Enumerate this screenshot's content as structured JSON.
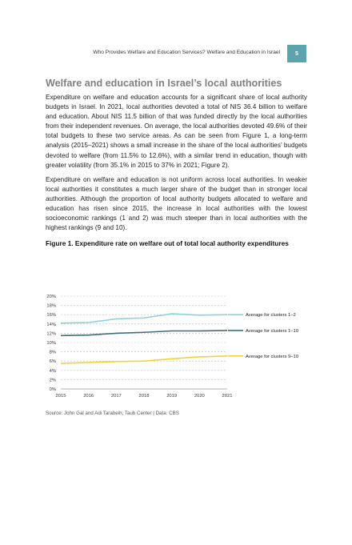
{
  "header": {
    "running_title": "Who Provides Welfare and Education Services? Welfare and Education in Israel",
    "page_number": "5"
  },
  "section_title": "Welfare and education in Israel’s local authorities",
  "paragraphs": [
    "Expenditure on welfare and education accounts for a significant share of local authority budgets in Israel. In 2021, local authorities devoted a total of NIS 36.4 billion to welfare and education. About NIS 11.5 billion of that was funded directly by the local authorities from their independent revenues. On average, the local authorities devoted 49.6% of their total budgets to these two service areas. As can be seen from Figure 1, a long-term analysis (2015–2021) shows a small increase in the share of the local authorities’ budgets devoted to welfare (from 11.5% to 12.6%), with a similar trend in education, though with greater volatility (from 35.1% in 2015 to 37% in 2021; Figure 2).",
    "Expenditure on welfare and education is not uniform across local authorities. In weaker local authorities it constitutes a much larger share of the budget than in stronger local authorities. Although the proportion of local authority budgets allocated to welfare and education has risen since 2015, the increase in local authorities with the lowest socioeconomic rankings (1 and 2) was much steeper than in local authorities with the highest rankings (9 and 10)."
  ],
  "figure": {
    "title": "Figure 1. Expenditure rate on welfare out of total local authority expenditures",
    "source": "Source: John Gal and Adi Tarabeih, Taub Center | Data: CBS"
  },
  "chart_data": {
    "type": "line",
    "x": [
      "2015",
      "2016",
      "2017",
      "2018",
      "2019",
      "2020",
      "2021"
    ],
    "yticks": [
      "0%",
      "2%",
      "4%",
      "6%",
      "8%",
      "10%",
      "12%",
      "14%",
      "16%",
      "18%",
      "20%"
    ],
    "ylim": [
      0,
      20
    ],
    "grid": true,
    "legend": "right-end labels",
    "series": [
      {
        "name": "Average for clusters 1–2",
        "color": "#8fd1dc",
        "values": [
          14.2,
          14.3,
          15.1,
          15.3,
          16.2,
          15.9,
          16.0
        ]
      },
      {
        "name": "Average for clusters 1–10",
        "color": "#3e6e7a",
        "values": [
          11.5,
          11.6,
          12.0,
          12.2,
          12.5,
          12.5,
          12.6
        ]
      },
      {
        "name": "Average for clusters 9–10",
        "color": "#f2d43a",
        "values": [
          5.5,
          5.7,
          5.9,
          6.0,
          6.5,
          6.9,
          7.1
        ]
      }
    ]
  }
}
